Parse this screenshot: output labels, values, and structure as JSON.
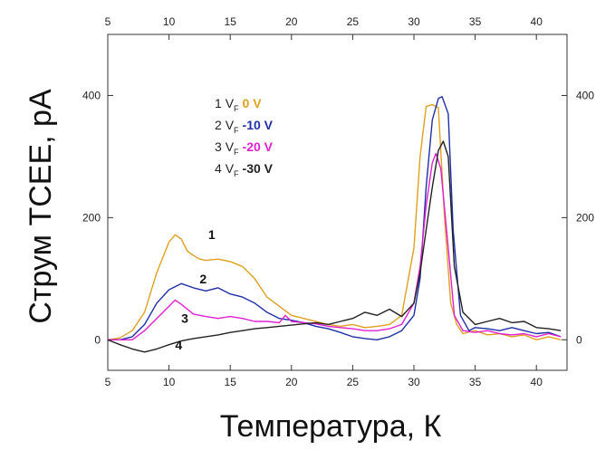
{
  "chart_data": {
    "type": "line",
    "title": "",
    "xlabel": "Температура,  К",
    "ylabel": "Струм  ТСЕЕ,  pA",
    "xlim": [
      5,
      42.5
    ],
    "ylim": [
      -50,
      500
    ],
    "x_ticks": [
      5,
      10,
      15,
      20,
      25,
      30,
      35,
      40
    ],
    "y_ticks": [
      0,
      200,
      400
    ],
    "grid": false,
    "legend_position": "top-left",
    "legend": [
      {
        "num": "1",
        "vf": "V",
        "sub": "F",
        "value": "0 V",
        "color": "#E0A020"
      },
      {
        "num": "2",
        "vf": "V",
        "sub": "F",
        "value": "-10 V",
        "color": "#1F2FA8"
      },
      {
        "num": "3",
        "vf": "V",
        "sub": "F",
        "value": "-20 V",
        "color": "#E020D0"
      },
      {
        "num": "4",
        "vf": "V",
        "sub": "F",
        "value": "-30 V",
        "color": "#222222"
      }
    ],
    "curve_labels": [
      {
        "text": "1",
        "x": 13.2,
        "y": 165
      },
      {
        "text": "2",
        "x": 12.5,
        "y": 92
      },
      {
        "text": "3",
        "x": 11.0,
        "y": 28
      },
      {
        "text": "4",
        "x": 10.5,
        "y": -16
      }
    ],
    "series": [
      {
        "name": "1",
        "color": "#E0A020",
        "points": [
          [
            5,
            0
          ],
          [
            6,
            3
          ],
          [
            7,
            15
          ],
          [
            8,
            45
          ],
          [
            9,
            110
          ],
          [
            10,
            160
          ],
          [
            10.5,
            172
          ],
          [
            11,
            165
          ],
          [
            11.5,
            145
          ],
          [
            12,
            138
          ],
          [
            12.5,
            132
          ],
          [
            13,
            130
          ],
          [
            14,
            132
          ],
          [
            15,
            128
          ],
          [
            16,
            120
          ],
          [
            17,
            100
          ],
          [
            18,
            70
          ],
          [
            19,
            55
          ],
          [
            20,
            40
          ],
          [
            21,
            35
          ],
          [
            22,
            30
          ],
          [
            23,
            25
          ],
          [
            24,
            22
          ],
          [
            25,
            25
          ],
          [
            26,
            20
          ],
          [
            27,
            22
          ],
          [
            28,
            25
          ],
          [
            29,
            40
          ],
          [
            30,
            150
          ],
          [
            30.5,
            300
          ],
          [
            31,
            382
          ],
          [
            31.5,
            385
          ],
          [
            32,
            380
          ],
          [
            32.5,
            200
          ],
          [
            33,
            60
          ],
          [
            33.5,
            25
          ],
          [
            34,
            10
          ],
          [
            35,
            15
          ],
          [
            36,
            8
          ],
          [
            37,
            10
          ],
          [
            38,
            5
          ],
          [
            39,
            8
          ],
          [
            40,
            0
          ],
          [
            41,
            5
          ],
          [
            42,
            0
          ]
        ]
      },
      {
        "name": "2",
        "color": "#1F2FA8",
        "points": [
          [
            5,
            0
          ],
          [
            6,
            0
          ],
          [
            7,
            5
          ],
          [
            8,
            25
          ],
          [
            9,
            60
          ],
          [
            10,
            82
          ],
          [
            11,
            92
          ],
          [
            12,
            85
          ],
          [
            13,
            80
          ],
          [
            14,
            85
          ],
          [
            15,
            75
          ],
          [
            16,
            70
          ],
          [
            17,
            60
          ],
          [
            18,
            45
          ],
          [
            19,
            35
          ],
          [
            20,
            32
          ],
          [
            21,
            28
          ],
          [
            22,
            22
          ],
          [
            23,
            18
          ],
          [
            24,
            12
          ],
          [
            25,
            5
          ],
          [
            26,
            2
          ],
          [
            27,
            0
          ],
          [
            28,
            5
          ],
          [
            29,
            15
          ],
          [
            30,
            40
          ],
          [
            30.5,
            100
          ],
          [
            31,
            250
          ],
          [
            31.5,
            360
          ],
          [
            32,
            395
          ],
          [
            32.3,
            398
          ],
          [
            32.8,
            370
          ],
          [
            33.2,
            180
          ],
          [
            33.8,
            40
          ],
          [
            34.5,
            15
          ],
          [
            35,
            20
          ],
          [
            36,
            18
          ],
          [
            37,
            15
          ],
          [
            38,
            20
          ],
          [
            39,
            15
          ],
          [
            40,
            10
          ],
          [
            41,
            12
          ],
          [
            42,
            5
          ]
        ]
      },
      {
        "name": "3",
        "color": "#E020D0",
        "points": [
          [
            5,
            0
          ],
          [
            6,
            0
          ],
          [
            7,
            0
          ],
          [
            8,
            15
          ],
          [
            9,
            35
          ],
          [
            10,
            55
          ],
          [
            10.5,
            65
          ],
          [
            11,
            58
          ],
          [
            12,
            42
          ],
          [
            13,
            38
          ],
          [
            14,
            35
          ],
          [
            15,
            38
          ],
          [
            16,
            35
          ],
          [
            17,
            30
          ],
          [
            18,
            30
          ],
          [
            19,
            28
          ],
          [
            19.5,
            40
          ],
          [
            20,
            30
          ],
          [
            21,
            28
          ],
          [
            22,
            26
          ],
          [
            23,
            22
          ],
          [
            24,
            20
          ],
          [
            25,
            18
          ],
          [
            26,
            15
          ],
          [
            27,
            15
          ],
          [
            28,
            18
          ],
          [
            29,
            25
          ],
          [
            30,
            60
          ],
          [
            30.5,
            120
          ],
          [
            31,
            220
          ],
          [
            31.5,
            290
          ],
          [
            31.8,
            305
          ],
          [
            32.2,
            280
          ],
          [
            32.8,
            150
          ],
          [
            33.3,
            40
          ],
          [
            34,
            15
          ],
          [
            35,
            12
          ],
          [
            36,
            15
          ],
          [
            37,
            10
          ],
          [
            38,
            8
          ],
          [
            39,
            10
          ],
          [
            40,
            5
          ],
          [
            41,
            10
          ],
          [
            42,
            5
          ]
        ]
      },
      {
        "name": "4",
        "color": "#222222",
        "points": [
          [
            5,
            0
          ],
          [
            6,
            -8
          ],
          [
            7,
            -15
          ],
          [
            8,
            -20
          ],
          [
            9,
            -15
          ],
          [
            10,
            -8
          ],
          [
            11,
            -2
          ],
          [
            12,
            2
          ],
          [
            13,
            5
          ],
          [
            14,
            8
          ],
          [
            15,
            12
          ],
          [
            16,
            15
          ],
          [
            17,
            18
          ],
          [
            18,
            20
          ],
          [
            19,
            22
          ],
          [
            20,
            24
          ],
          [
            21,
            26
          ],
          [
            22,
            28
          ],
          [
            23,
            25
          ],
          [
            24,
            30
          ],
          [
            25,
            35
          ],
          [
            26,
            45
          ],
          [
            27,
            40
          ],
          [
            28,
            50
          ],
          [
            29,
            38
          ],
          [
            30,
            60
          ],
          [
            30.5,
            110
          ],
          [
            31,
            180
          ],
          [
            31.5,
            250
          ],
          [
            32,
            310
          ],
          [
            32.4,
            325
          ],
          [
            32.8,
            300
          ],
          [
            33.3,
            120
          ],
          [
            34,
            45
          ],
          [
            35,
            25
          ],
          [
            36,
            30
          ],
          [
            37,
            35
          ],
          [
            38,
            28
          ],
          [
            39,
            30
          ],
          [
            40,
            20
          ],
          [
            41,
            18
          ],
          [
            42,
            15
          ]
        ]
      }
    ]
  }
}
